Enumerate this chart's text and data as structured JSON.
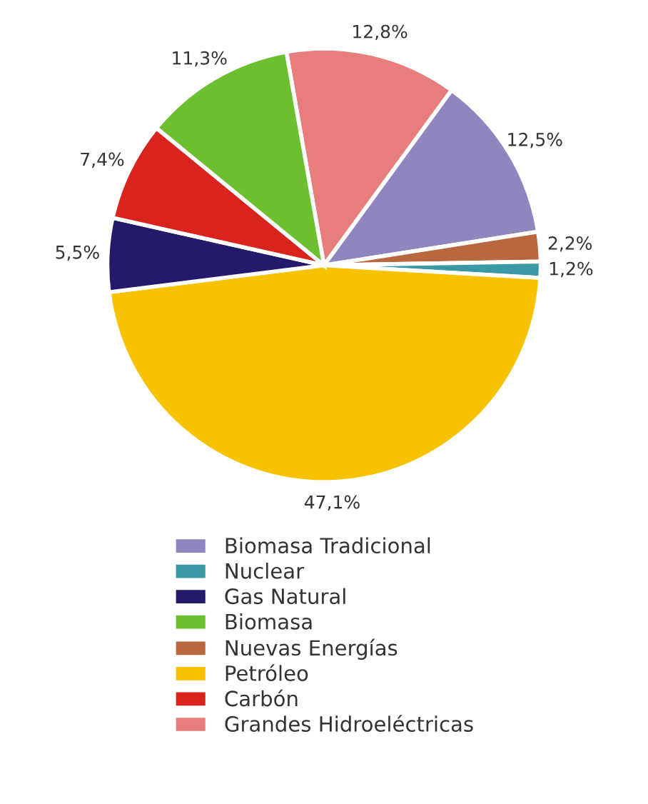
{
  "chart_data": {
    "type": "pie",
    "categories": [
      "Grandes Hidroeléctricas",
      "Biomasa Tradicional",
      "Nuevas Energías",
      "Nuclear",
      "Petróleo",
      "Gas Natural",
      "Carbón",
      "Biomasa"
    ],
    "values": [
      12.8,
      12.5,
      2.2,
      1.2,
      47.1,
      5.5,
      7.4,
      11.3
    ],
    "colors": [
      "#e87d7e",
      "#8f86bf",
      "#b9673f",
      "#3a99a4",
      "#f7c200",
      "#241a6a",
      "#d9241e",
      "#6cbf2e"
    ],
    "value_labels": [
      "12,8%",
      "12,5%",
      "2,2%",
      "1,2%",
      "47,1%",
      "5,5%",
      "7,4%",
      "11,3%"
    ],
    "legend": "bottom"
  }
}
